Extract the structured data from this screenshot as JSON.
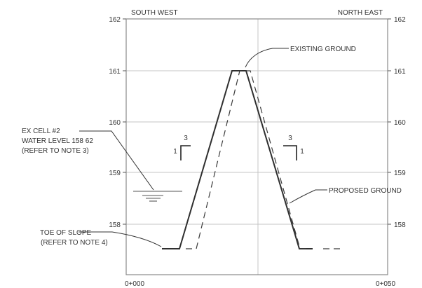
{
  "diagram": {
    "direction_left": "SOUTH WEST",
    "direction_right": "NORTH EAST",
    "elevation_ticks": [
      "162",
      "161",
      "160",
      "159",
      "158"
    ],
    "station_start": "0+000",
    "station_end": "0+050",
    "callouts": {
      "existing_ground": "EXISTING GROUND",
      "proposed_ground": "PROPOSED GROUND",
      "water_level_line1": "EX CELL #2",
      "water_level_line2": "WATER LEVEL 158 62",
      "water_level_line3": "(REFER TO NOTE 3)",
      "toe_line1": "TOE OF SLOPE",
      "toe_line2": "(REFER TO NOTE 4)"
    },
    "slope_left": {
      "run": "3",
      "rise": "1"
    },
    "slope_right": {
      "run": "3",
      "rise": "1"
    }
  }
}
